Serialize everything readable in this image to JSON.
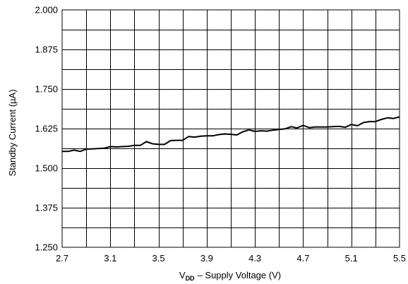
{
  "chart_data": {
    "type": "line",
    "title": "",
    "xlabel": "– Supply Voltage (V)",
    "xlabel_symbol": "V",
    "xlabel_subscript": "DD",
    "ylabel": "Standby Current (µA)",
    "xlim": [
      2.7,
      5.5
    ],
    "ylim": [
      1.25,
      2.0
    ],
    "grid": true,
    "x_tick_values": [
      2.7,
      3.1,
      3.5,
      3.9,
      4.3,
      4.7,
      5.1,
      5.5
    ],
    "x_tick_labels": [
      "2.7",
      "3.1",
      "3.5",
      "3.9",
      "4.3",
      "4.7",
      "5.1",
      "5.5"
    ],
    "y_tick_values": [
      1.25,
      1.375,
      1.5,
      1.625,
      1.75,
      1.875,
      2.0
    ],
    "y_tick_labels": [
      "1.250",
      "1.375",
      "1.500",
      "1.625",
      "1.750",
      "1.875",
      "2.000"
    ],
    "x_minor_grid_step": 0.2,
    "y_minor_grid_step": 0.0625,
    "series": [
      {
        "color": "#000000",
        "x": [
          2.7,
          2.75,
          2.8,
          2.85,
          2.9,
          2.95,
          3.0,
          3.05,
          3.1,
          3.15,
          3.2,
          3.25,
          3.3,
          3.35,
          3.4,
          3.45,
          3.5,
          3.55,
          3.6,
          3.65,
          3.7,
          3.75,
          3.8,
          3.85,
          3.9,
          3.95,
          4.0,
          4.05,
          4.1,
          4.15,
          4.2,
          4.25,
          4.3,
          4.35,
          4.4,
          4.45,
          4.5,
          4.55,
          4.6,
          4.65,
          4.7,
          4.75,
          4.8,
          4.85,
          4.9,
          4.95,
          5.0,
          5.05,
          5.1,
          5.15,
          5.2,
          5.25,
          5.3,
          5.35,
          5.4,
          5.45,
          5.5
        ],
        "y": [
          1.553,
          1.553,
          1.557,
          1.553,
          1.56,
          1.561,
          1.562,
          1.563,
          1.568,
          1.567,
          1.568,
          1.569,
          1.572,
          1.572,
          1.584,
          1.577,
          1.575,
          1.575,
          1.587,
          1.588,
          1.588,
          1.6,
          1.598,
          1.601,
          1.602,
          1.602,
          1.606,
          1.608,
          1.607,
          1.605,
          1.615,
          1.621,
          1.616,
          1.618,
          1.617,
          1.62,
          1.622,
          1.624,
          1.631,
          1.627,
          1.635,
          1.628,
          1.63,
          1.63,
          1.63,
          1.631,
          1.632,
          1.629,
          1.638,
          1.634,
          1.644,
          1.647,
          1.647,
          1.654,
          1.659,
          1.657,
          1.662
        ]
      }
    ]
  }
}
